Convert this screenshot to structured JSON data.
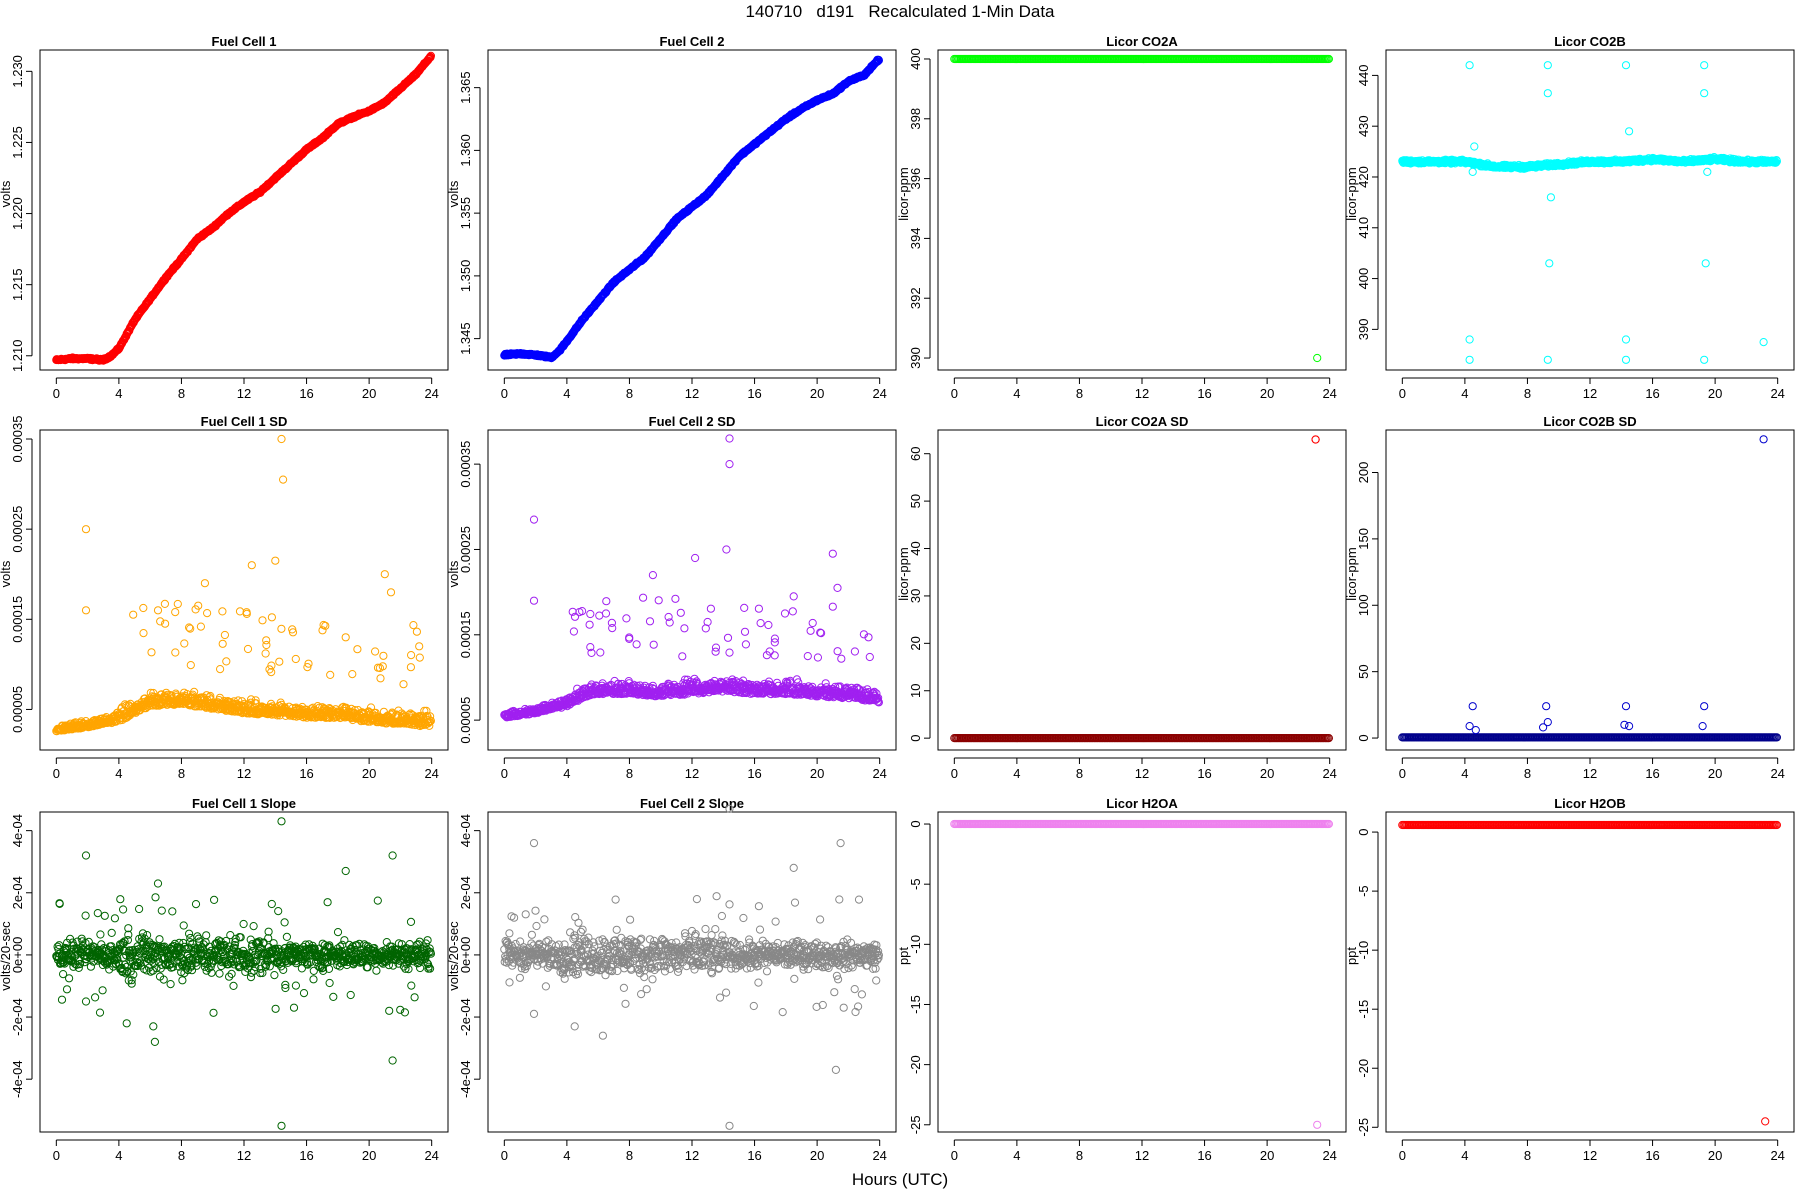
{
  "figure": {
    "title": "140710   d191   Recalculated 1-Min Data",
    "xlabel": "Hours (UTC)"
  },
  "chart_data": [
    {
      "id": "fc1",
      "type": "scatter",
      "title": "Fuel Cell 1",
      "ylabel": "volts",
      "color": "#ff0000",
      "xlim": [
        0,
        24
      ],
      "xticks": [
        0,
        4,
        8,
        12,
        16,
        20,
        24
      ],
      "xtick_labels": [
        "0",
        "4",
        "8",
        "12",
        "16",
        "20",
        "24"
      ],
      "ylim": [
        1.209,
        1.2315
      ],
      "yticks": [
        1.21,
        1.215,
        1.22,
        1.225,
        1.23
      ],
      "ytick_labels": [
        "1.210",
        "1.215",
        "1.220",
        "1.225",
        "1.230"
      ],
      "x": [
        0,
        1,
        2,
        3,
        3.5,
        4,
        5,
        6,
        7,
        8,
        9,
        10,
        11,
        12,
        13,
        14,
        15,
        16,
        17,
        18,
        19,
        20,
        21,
        22,
        23,
        23.9
      ],
      "y": [
        1.2097,
        1.2098,
        1.2098,
        1.2097,
        1.21,
        1.2105,
        1.2125,
        1.214,
        1.2155,
        1.2168,
        1.2182,
        1.219,
        1.22,
        1.2208,
        1.2215,
        1.2225,
        1.2235,
        1.2245,
        1.2253,
        1.2263,
        1.2268,
        1.2272,
        1.2278,
        1.2288,
        1.2298,
        1.231
      ]
    },
    {
      "id": "fc2",
      "type": "scatter",
      "title": "Fuel Cell 2",
      "ylabel": "volts",
      "color": "#0000ff",
      "xlim": [
        0,
        24
      ],
      "xticks": [
        0,
        4,
        8,
        12,
        16,
        20,
        24
      ],
      "xtick_labels": [
        "0",
        "4",
        "8",
        "12",
        "16",
        "20",
        "24"
      ],
      "ylim": [
        1.3425,
        1.368
      ],
      "yticks": [
        1.345,
        1.35,
        1.355,
        1.36,
        1.365
      ],
      "ytick_labels": [
        "1.345",
        "1.350",
        "1.355",
        "1.360",
        "1.365"
      ],
      "x": [
        0,
        1,
        2,
        3,
        3.5,
        4,
        5,
        6,
        7,
        8,
        9,
        10,
        11,
        12,
        13,
        14,
        15,
        16,
        17,
        18,
        19,
        20,
        21,
        22,
        23,
        23.9
      ],
      "y": [
        1.3437,
        1.3438,
        1.3437,
        1.3435,
        1.344,
        1.3448,
        1.3465,
        1.348,
        1.3495,
        1.3505,
        1.3515,
        1.353,
        1.3545,
        1.3555,
        1.3565,
        1.358,
        1.3595,
        1.3605,
        1.3615,
        1.3625,
        1.3633,
        1.364,
        1.3645,
        1.3655,
        1.366,
        1.3672
      ]
    },
    {
      "id": "co2a",
      "type": "scatter",
      "title": "Licor CO2A",
      "ylabel": "licor-ppm",
      "color": "#00ff00",
      "xlim": [
        0,
        24
      ],
      "xticks": [
        0,
        4,
        8,
        12,
        16,
        20,
        24
      ],
      "xtick_labels": [
        "0",
        "4",
        "8",
        "12",
        "16",
        "20",
        "24"
      ],
      "ylim": [
        389.6,
        400.3
      ],
      "yticks": [
        390,
        392,
        394,
        396,
        398,
        400
      ],
      "ytick_labels": [
        "390",
        "392",
        "394",
        "396",
        "398",
        "400"
      ],
      "x": [
        0,
        2,
        4,
        6,
        8,
        10,
        12,
        14,
        16,
        18,
        20,
        22,
        23.2,
        24
      ],
      "y": [
        400,
        400,
        400,
        400,
        400,
        400,
        400,
        400,
        400,
        400,
        400,
        400,
        400,
        400
      ],
      "outliers": [
        [
          23.2,
          390.0
        ]
      ]
    },
    {
      "id": "co2b",
      "type": "scatter",
      "title": "Licor CO2B",
      "ylabel": "licor-ppm",
      "color": "#00ffff",
      "xlim": [
        0,
        24
      ],
      "xticks": [
        0,
        4,
        8,
        12,
        16,
        20,
        24
      ],
      "xtick_labels": [
        "0",
        "4",
        "8",
        "12",
        "16",
        "20",
        "24"
      ],
      "ylim": [
        382,
        445
      ],
      "yticks": [
        390,
        400,
        410,
        420,
        430,
        440
      ],
      "ytick_labels": [
        "390",
        "400",
        "410",
        "420",
        "430",
        "440"
      ],
      "x": [
        0,
        2,
        4,
        5,
        6,
        8,
        10,
        12,
        14,
        16,
        18,
        20,
        22,
        24
      ],
      "y": [
        423,
        423,
        423,
        422.5,
        422,
        422,
        422.5,
        423,
        423,
        423.5,
        423,
        423.5,
        423,
        423
      ],
      "outliers": [
        [
          4.3,
          442
        ],
        [
          4.3,
          388
        ],
        [
          4.3,
          384
        ],
        [
          4.5,
          421
        ],
        [
          4.6,
          426
        ],
        [
          9.3,
          442
        ],
        [
          9.3,
          436.5
        ],
        [
          9.3,
          384
        ],
        [
          9.4,
          403
        ],
        [
          9.5,
          416
        ],
        [
          14.3,
          442
        ],
        [
          14.3,
          388
        ],
        [
          14.3,
          384
        ],
        [
          14.5,
          429
        ],
        [
          19.3,
          442
        ],
        [
          19.3,
          436.5
        ],
        [
          19.3,
          384
        ],
        [
          19.4,
          403
        ],
        [
          19.5,
          421
        ],
        [
          23.1,
          387.5
        ]
      ]
    },
    {
      "id": "fc1sd",
      "type": "scatter",
      "title": "Fuel Cell 1 SD",
      "ylabel": "volts",
      "color": "#ffa500",
      "xlim": [
        0,
        24
      ],
      "xticks": [
        0,
        4,
        8,
        12,
        16,
        20,
        24
      ],
      "xtick_labels": [
        "0",
        "4",
        "8",
        "12",
        "16",
        "20",
        "24"
      ],
      "ylim": [
        5e-06,
        0.00036
      ],
      "yticks": [
        5e-05,
        0.00015,
        0.00025,
        0.00035
      ],
      "ytick_labels": [
        "0.00005",
        "0.00015",
        "0.00025",
        "0.00035"
      ],
      "x": [
        0,
        2,
        4,
        5,
        6,
        8,
        10,
        12,
        14,
        16,
        18,
        20,
        22,
        24
      ],
      "y": [
        2.8e-05,
        3.2e-05,
        4e-05,
        5e-05,
        5.8e-05,
        6e-05,
        5.5e-05,
        5e-05,
        4.8e-05,
        4.5e-05,
        4.5e-05,
        4e-05,
        3.8e-05,
        3.5e-05
      ],
      "outliers": [
        [
          1.9,
          0.00025
        ],
        [
          1.9,
          0.00016
        ],
        [
          9.5,
          0.00019
        ],
        [
          12.5,
          0.00021
        ],
        [
          14.4,
          0.00035
        ],
        [
          14.5,
          0.000305
        ],
        [
          14,
          0.000215
        ],
        [
          21.0,
          0.0002
        ],
        [
          21.4,
          0.00018
        ],
        [
          6.5,
          0.00016
        ],
        [
          18.5,
          0.00013
        ],
        [
          23.2,
          0.00012
        ]
      ]
    },
    {
      "id": "fc2sd",
      "type": "scatter",
      "title": "Fuel Cell 2 SD",
      "ylabel": "volts",
      "color": "#a020f0",
      "xlim": [
        0,
        24
      ],
      "xticks": [
        0,
        4,
        8,
        12,
        16,
        20,
        24
      ],
      "xtick_labels": [
        "0",
        "4",
        "8",
        "12",
        "16",
        "20",
        "24"
      ],
      "ylim": [
        1.5e-05,
        0.00039
      ],
      "yticks": [
        5e-05,
        0.00015,
        0.00025,
        0.00035
      ],
      "ytick_labels": [
        "0.00005",
        "0.00015",
        "0.00025",
        "0.00035"
      ],
      "x": [
        0,
        2,
        4,
        5,
        6,
        8,
        10,
        12,
        14,
        16,
        18,
        20,
        22,
        24
      ],
      "y": [
        5.5e-05,
        6e-05,
        7e-05,
        8e-05,
        8.5e-05,
        8.5e-05,
        8.2e-05,
        8.5e-05,
        8.8e-05,
        8.5e-05,
        8.5e-05,
        8.2e-05,
        8e-05,
        7.5e-05
      ],
      "outliers": [
        [
          1.9,
          0.000285
        ],
        [
          1.9,
          0.00019
        ],
        [
          9.5,
          0.00022
        ],
        [
          12.2,
          0.00024
        ],
        [
          14.2,
          0.00025
        ],
        [
          14.4,
          0.00038
        ],
        [
          14.4,
          0.00035
        ],
        [
          21.0,
          0.000245
        ],
        [
          21.3,
          0.000205
        ],
        [
          18.5,
          0.000195
        ],
        [
          6.5,
          0.000175
        ],
        [
          13,
          0.000165
        ]
      ]
    },
    {
      "id": "co2asd",
      "type": "scatter",
      "title": "Licor CO2A SD",
      "ylabel": "licor-ppm",
      "color": "#8b0000",
      "xlim": [
        0,
        24
      ],
      "xticks": [
        0,
        4,
        8,
        12,
        16,
        20,
        24
      ],
      "xtick_labels": [
        "0",
        "4",
        "8",
        "12",
        "16",
        "20",
        "24"
      ],
      "ylim": [
        -2.5,
        65
      ],
      "yticks": [
        0,
        10,
        20,
        30,
        40,
        50,
        60
      ],
      "ytick_labels": [
        "0",
        "10",
        "20",
        "30",
        "40",
        "50",
        "60"
      ],
      "x": [
        0,
        2,
        4,
        6,
        8,
        10,
        12,
        14,
        16,
        18,
        20,
        22,
        24
      ],
      "y": [
        0,
        0,
        0,
        0,
        0,
        0,
        0,
        0,
        0,
        0,
        0,
        0,
        0
      ],
      "outliers": [
        [
          23.1,
          63
        ],
        [
          23.1,
          63
        ]
      ],
      "outlier_color": "#ff0000"
    },
    {
      "id": "co2bsd",
      "type": "scatter",
      "title": "Licor CO2B SD",
      "ylabel": "licor-ppm",
      "color": "#00008b",
      "xlim": [
        0,
        24
      ],
      "xticks": [
        0,
        4,
        8,
        12,
        16,
        20,
        24
      ],
      "xtick_labels": [
        "0",
        "4",
        "8",
        "12",
        "16",
        "20",
        "24"
      ],
      "ylim": [
        -9,
        232
      ],
      "yticks": [
        0,
        50,
        100,
        150,
        200
      ],
      "ytick_labels": [
        "0",
        "50",
        "100",
        "150",
        "200"
      ],
      "x": [
        0,
        2,
        4,
        6,
        8,
        10,
        12,
        14,
        16,
        18,
        20,
        22,
        24
      ],
      "y": [
        0.5,
        0.5,
        0.5,
        0.5,
        0.5,
        0.5,
        0.5,
        0.5,
        0.5,
        0.5,
        0.5,
        0.5,
        0.5
      ],
      "outliers": [
        [
          4.3,
          9
        ],
        [
          4.5,
          24
        ],
        [
          4.7,
          6
        ],
        [
          9.2,
          24
        ],
        [
          9.3,
          12
        ],
        [
          9.0,
          8
        ],
        [
          14.3,
          24
        ],
        [
          14.2,
          10
        ],
        [
          14.5,
          9
        ],
        [
          19.3,
          24
        ],
        [
          19.2,
          9
        ],
        [
          23.1,
          225
        ]
      ],
      "outlier_color": "#0000cd"
    },
    {
      "id": "fc1slope",
      "type": "scatter",
      "title": "Fuel Cell 1 Slope",
      "ylabel": "volts/20-sec",
      "color": "#006400",
      "xlim": [
        0,
        24
      ],
      "xticks": [
        0,
        4,
        8,
        12,
        16,
        20,
        24
      ],
      "xtick_labels": [
        "0",
        "4",
        "8",
        "12",
        "16",
        "20",
        "24"
      ],
      "ylim": [
        -0.00057,
        0.00046
      ],
      "yticks": [
        -0.0004,
        -0.0002,
        0,
        0.0002,
        0.0004
      ],
      "ytick_labels": [
        "-4e-04",
        "-2e-04",
        "0e+00",
        "2e-04",
        "4e-04"
      ],
      "x": [
        0,
        4,
        8,
        12,
        16,
        20,
        24
      ],
      "y": [
        0,
        0,
        0,
        0,
        0,
        0,
        0
      ],
      "outliers": [
        [
          1.9,
          0.00032
        ],
        [
          14.4,
          0.00043
        ],
        [
          14.4,
          -0.00055
        ],
        [
          21.5,
          0.00032
        ],
        [
          21.5,
          -0.00034
        ],
        [
          6.3,
          -0.00028
        ],
        [
          6.5,
          0.00023
        ],
        [
          18.5,
          0.00027
        ],
        [
          1.9,
          -0.00015
        ],
        [
          4.5,
          -0.00022
        ],
        [
          6.2,
          -0.00023
        ],
        [
          15.2,
          -0.00017
        ]
      ]
    },
    {
      "id": "fc2slope",
      "type": "scatter",
      "title": "Fuel Cell 2 Slope",
      "ylabel": "volts/20-sec",
      "color": "#888888",
      "xlim": [
        0,
        24
      ],
      "xticks": [
        0,
        4,
        8,
        12,
        16,
        20,
        24
      ],
      "xtick_labels": [
        "0",
        "4",
        "8",
        "12",
        "16",
        "20",
        "24"
      ],
      "ylim": [
        -0.00057,
        0.00046
      ],
      "yticks": [
        -0.0004,
        -0.0002,
        0,
        0.0002,
        0.0004
      ],
      "ytick_labels": [
        "-4e-04",
        "-2e-04",
        "0e+00",
        "2e-04",
        "4e-04"
      ],
      "x": [
        0,
        4,
        8,
        12,
        16,
        20,
        24
      ],
      "y": [
        0,
        0,
        0,
        0,
        0,
        0,
        0
      ],
      "outliers": [
        [
          1.9,
          0.00036
        ],
        [
          14.4,
          0.00047
        ],
        [
          14.4,
          -0.00055
        ],
        [
          21.5,
          0.00036
        ],
        [
          21.2,
          -0.00037
        ],
        [
          6.3,
          -0.00026
        ],
        [
          18.5,
          0.00028
        ],
        [
          1.9,
          -0.00019
        ],
        [
          4.5,
          -0.00023
        ],
        [
          21.7,
          -0.00017
        ]
      ]
    },
    {
      "id": "h2oa",
      "type": "scatter",
      "title": "Licor H2OA",
      "ylabel": "ppt",
      "color": "#ee82ee",
      "xlim": [
        0,
        24
      ],
      "xticks": [
        0,
        4,
        8,
        12,
        16,
        20,
        24
      ],
      "xtick_labels": [
        "0",
        "4",
        "8",
        "12",
        "16",
        "20",
        "24"
      ],
      "ylim": [
        -25.6,
        1.0
      ],
      "yticks": [
        -25,
        -20,
        -15,
        -10,
        -5,
        0
      ],
      "ytick_labels": [
        "-25",
        "-20",
        "-15",
        "-10",
        "-5",
        "0"
      ],
      "x": [
        0,
        4,
        8,
        12,
        16,
        20,
        24
      ],
      "y": [
        0,
        0,
        0,
        0,
        0,
        0,
        0
      ],
      "outliers": [
        [
          23.2,
          -25
        ]
      ]
    },
    {
      "id": "h2ob",
      "type": "scatter",
      "title": "Licor H2OB",
      "ylabel": "ppt",
      "color": "#ff0000",
      "xlim": [
        0,
        24
      ],
      "xticks": [
        0,
        4,
        8,
        12,
        16,
        20,
        24
      ],
      "xtick_labels": [
        "0",
        "4",
        "8",
        "12",
        "16",
        "20",
        "24"
      ],
      "ylim": [
        -25.4,
        1.7
      ],
      "yticks": [
        -25,
        -20,
        -15,
        -10,
        -5,
        0
      ],
      "ytick_labels": [
        "-25",
        "-20",
        "-15",
        "-10",
        "-5",
        "0"
      ],
      "x": [
        0,
        4,
        8,
        12,
        16,
        20,
        24
      ],
      "y": [
        0.6,
        0.6,
        0.6,
        0.6,
        0.6,
        0.6,
        0.6
      ],
      "outliers": [
        [
          23.2,
          -24.5
        ]
      ]
    }
  ]
}
